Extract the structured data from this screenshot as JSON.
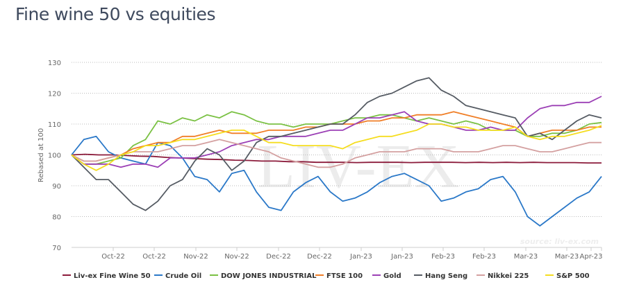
{
  "page": {
    "title": "Fine wine 50 vs equities"
  },
  "chart_data": {
    "type": "line",
    "title": "Fine wine 50 vs equities",
    "xlabel": "",
    "ylabel": "Rebased at 100",
    "ylim": [
      70,
      130
    ],
    "yticks": [
      70,
      80,
      90,
      100,
      110,
      120,
      130
    ],
    "xtick_labels": [
      "Oct-22",
      "Oct-22",
      "Nov-22",
      "Nov-22",
      "Dec-22",
      "Dec-22",
      "Jan-23",
      "Jan-23",
      "Feb-23",
      "Feb-23",
      "Mar-23",
      "Mar-23",
      "Apr-23"
    ],
    "grid": true,
    "legend_position": "bottom",
    "watermark": "LIV-EX",
    "source": "source: liv-ex.com",
    "series": [
      {
        "name": "Liv-ex Fine Wine 50",
        "color": "#8b1a3a",
        "values": [
          100,
          100.2,
          100,
          100,
          99.8,
          99.6,
          99.5,
          99.2,
          99,
          98.8,
          98.6,
          98.5,
          98.3,
          98.2,
          98,
          98,
          97.8,
          97.8,
          97.6,
          97.6,
          97.6,
          97.5,
          97.6,
          97.6,
          97.6,
          97.5,
          97.6,
          97.6,
          97.6,
          97.5,
          97.6,
          97.5,
          97.6,
          97.5,
          97.6,
          97.5,
          97.5,
          97.5,
          97.4,
          97.4
        ]
      },
      {
        "name": "Crude Oil",
        "color": "#2a78c8",
        "values": [
          100,
          105,
          106,
          101,
          99,
          98,
          97,
          104,
          103,
          99,
          93,
          92,
          88,
          94,
          95,
          88,
          83,
          82,
          88,
          91,
          93,
          88,
          85,
          86,
          88,
          91,
          93,
          94,
          92,
          90,
          85,
          86,
          88,
          89,
          92,
          93,
          88,
          80,
          77,
          80,
          83,
          86,
          88,
          93
        ]
      },
      {
        "name": "DOW JONES INDUSTRIAL",
        "color": "#7ac143",
        "values": [
          100,
          97,
          97,
          98,
          99,
          103,
          105,
          111,
          110,
          112,
          111,
          113,
          112,
          114,
          113,
          111,
          110,
          110,
          109,
          110,
          110,
          110,
          111,
          112,
          112,
          113,
          113,
          112,
          111,
          112,
          111,
          110,
          111,
          110,
          108,
          108,
          108,
          106,
          106,
          107,
          107,
          108,
          110,
          110.5
        ]
      },
      {
        "name": "FTSE 100",
        "color": "#f07e26",
        "values": [
          100,
          98,
          98,
          99,
          100,
          102,
          103,
          104,
          104,
          106,
          106,
          107,
          108,
          107,
          107,
          107,
          108,
          108,
          108,
          109,
          109,
          110,
          110,
          110,
          111,
          111,
          112,
          112,
          113,
          113,
          113,
          114,
          113,
          112,
          111,
          110,
          109,
          106,
          107,
          108,
          108,
          108,
          109,
          109
        ]
      },
      {
        "name": "Gold",
        "color": "#9b3fb5",
        "values": [
          100,
          97,
          97,
          97,
          96,
          97,
          97,
          96,
          99,
          99,
          99,
          100,
          101,
          103,
          104,
          105,
          105,
          106,
          106,
          106,
          107,
          108,
          108,
          110,
          112,
          112,
          113,
          114,
          111,
          110,
          110,
          109,
          108,
          108,
          109,
          108,
          108,
          112,
          115,
          116,
          116,
          117,
          117,
          119
        ]
      },
      {
        "name": "Hang Seng",
        "color": "#555b63",
        "values": [
          100,
          96,
          92,
          92,
          88,
          84,
          82,
          85,
          90,
          92,
          98,
          102,
          100,
          95,
          98,
          104,
          106,
          106,
          107,
          108,
          109,
          110,
          110,
          113,
          117,
          119,
          120,
          122,
          124,
          125,
          121,
          119,
          116,
          115,
          114,
          113,
          112,
          106,
          107,
          105,
          108,
          111,
          113,
          112
        ]
      },
      {
        "name": "Nikkei 225",
        "color": "#d4a0a0",
        "values": [
          100,
          98,
          98,
          99,
          100,
          101,
          101,
          101,
          102,
          103,
          103,
          104,
          105,
          104,
          103,
          102,
          101,
          99,
          98,
          97,
          96,
          96,
          97,
          99,
          100,
          101,
          101,
          101,
          102,
          102,
          102,
          101,
          101,
          101,
          102,
          103,
          103,
          102,
          101,
          101,
          102,
          103,
          104,
          104
        ]
      },
      {
        "name": "S&P 500",
        "color": "#f5dd1f",
        "values": [
          100,
          97,
          95,
          97,
          100,
          101,
          103,
          103,
          104,
          105,
          105,
          106,
          107,
          108,
          108,
          106,
          104,
          104,
          103,
          103,
          103,
          103,
          102,
          104,
          105,
          106,
          106,
          107,
          108,
          110,
          110,
          109,
          109,
          108,
          108,
          108,
          109,
          106,
          105,
          106,
          106,
          107,
          108,
          109.5
        ]
      }
    ]
  },
  "legend": [
    {
      "label": "Liv-ex Fine Wine 50"
    },
    {
      "label": "Crude Oil"
    },
    {
      "label": "DOW JONES INDUSTRIAL"
    },
    {
      "label": "FTSE 100"
    },
    {
      "label": "Gold"
    },
    {
      "label": "Hang Seng"
    },
    {
      "label": "Nikkei 225"
    },
    {
      "label": "S&P 500"
    }
  ]
}
